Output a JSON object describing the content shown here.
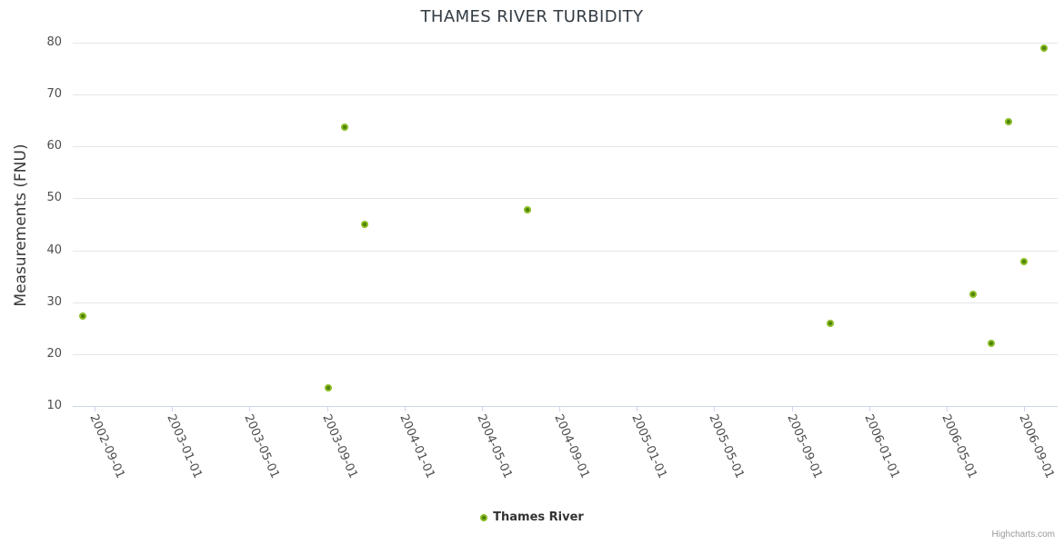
{
  "title": "THAMES RIVER TURBIDITY",
  "credits_label": "Highcharts.com",
  "legend": {
    "series_label": "Thames River",
    "marker_color": "#7ab317"
  },
  "colors": {
    "point_fill": "#4f8009",
    "point_ring": "#8abc25",
    "gridline": "#e6e6e6",
    "axis_line": "#ccd6eb",
    "title_text": "#333c44",
    "label_text": "#4d4d4d",
    "credits_text": "#999999"
  },
  "chart_data": {
    "type": "scatter",
    "title": "THAMES RIVER TURBIDITY",
    "xlabel": "",
    "ylabel": "Measurements (FNU)",
    "legend_position": "bottom-center",
    "grid": "horizontal-only",
    "x_axis": {
      "type": "datetime",
      "range_start": "2002-09-01",
      "range_end": "2006-09-01",
      "tick_labels": [
        "2002-09-01",
        "2003-01-01",
        "2003-05-01",
        "2003-09-01",
        "2004-01-01",
        "2004-05-01",
        "2004-09-01",
        "2005-01-01",
        "2005-05-01",
        "2005-09-01",
        "2006-01-01",
        "2006-05-01",
        "2006-09-01"
      ],
      "label_rotation_deg": 66
    },
    "y_axis": {
      "title": "Measurements (FNU)",
      "min": 10,
      "max": 80,
      "tick_interval": 10,
      "tick_labels": [
        10,
        20,
        30,
        40,
        50,
        60,
        70,
        80
      ]
    },
    "series": [
      {
        "name": "Thames River",
        "color": "#7ab317",
        "points": [
          {
            "date": "2002-08-13",
            "value": 27.3
          },
          {
            "date": "2003-09-03",
            "value": 13.5
          },
          {
            "date": "2003-09-29",
            "value": 63.8
          },
          {
            "date": "2003-10-30",
            "value": 45.0
          },
          {
            "date": "2004-07-13",
            "value": 47.8
          },
          {
            "date": "2005-11-01",
            "value": 26.0
          },
          {
            "date": "2006-06-13",
            "value": 31.5
          },
          {
            "date": "2006-07-12",
            "value": 22.1
          },
          {
            "date": "2006-08-07",
            "value": 64.8
          },
          {
            "date": "2006-09-01",
            "value": 37.8
          },
          {
            "date": "2006-10-02",
            "value": 79.0
          }
        ]
      }
    ]
  }
}
